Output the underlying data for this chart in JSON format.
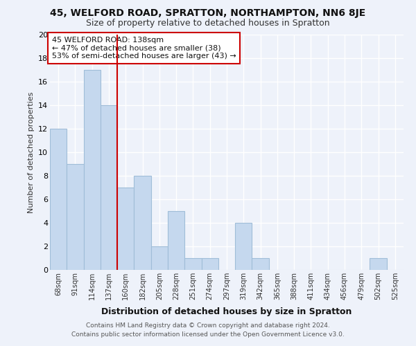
{
  "title1": "45, WELFORD ROAD, SPRATTON, NORTHAMPTON, NN6 8JE",
  "title2": "Size of property relative to detached houses in Spratton",
  "xlabel": "Distribution of detached houses by size in Spratton",
  "ylabel": "Number of detached properties",
  "categories": [
    "68sqm",
    "91sqm",
    "114sqm",
    "137sqm",
    "160sqm",
    "182sqm",
    "205sqm",
    "228sqm",
    "251sqm",
    "274sqm",
    "297sqm",
    "319sqm",
    "342sqm",
    "365sqm",
    "388sqm",
    "411sqm",
    "434sqm",
    "456sqm",
    "479sqm",
    "502sqm",
    "525sqm"
  ],
  "values": [
    12,
    9,
    17,
    14,
    7,
    8,
    2,
    5,
    1,
    1,
    0,
    4,
    1,
    0,
    0,
    0,
    0,
    0,
    0,
    1,
    0
  ],
  "bar_color": "#c5d8ee",
  "bar_edge_color": "#a0bdd8",
  "highlight_index": 3,
  "highlight_line_color": "#cc0000",
  "annotation_text": "45 WELFORD ROAD: 138sqm\n← 47% of detached houses are smaller (38)\n53% of semi-detached houses are larger (43) →",
  "annotation_box_color": "#ffffff",
  "annotation_box_edge": "#cc0000",
  "footer": "Contains HM Land Registry data © Crown copyright and database right 2024.\nContains public sector information licensed under the Open Government Licence v3.0.",
  "ylim": [
    0,
    20
  ],
  "yticks": [
    0,
    2,
    4,
    6,
    8,
    10,
    12,
    14,
    16,
    18,
    20
  ],
  "background_color": "#eef2fa",
  "grid_color": "#ffffff",
  "title1_fontsize": 10,
  "title2_fontsize": 9
}
